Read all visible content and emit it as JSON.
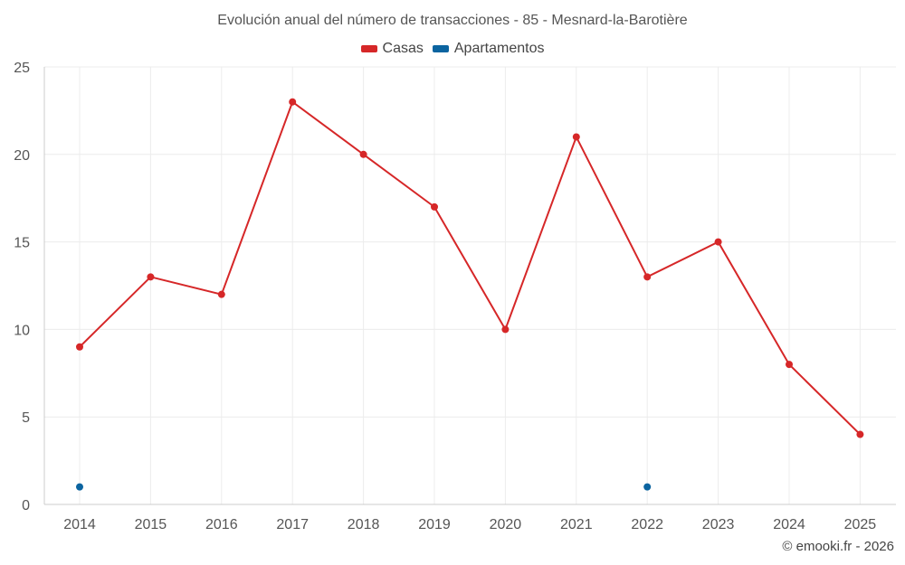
{
  "chart_data": {
    "type": "line",
    "title": "Evolución anual del número de transacciones - 85 - Mesnard-la-Barotière",
    "xlabel": "",
    "ylabel": "",
    "x": [
      "2014",
      "2015",
      "2016",
      "2017",
      "2018",
      "2019",
      "2020",
      "2021",
      "2022",
      "2023",
      "2024",
      "2025"
    ],
    "ylim": [
      0,
      25
    ],
    "yticks": [
      0,
      5,
      10,
      15,
      20,
      25
    ],
    "grid": true,
    "legend_position": "top-center",
    "series": [
      {
        "name": "Casas",
        "color": "#d62728",
        "values": [
          9,
          13,
          12,
          23,
          20,
          17,
          10,
          21,
          13,
          15,
          8,
          4
        ]
      },
      {
        "name": "Apartamentos",
        "color": "#0b64a0",
        "values": [
          1,
          null,
          null,
          null,
          null,
          null,
          null,
          null,
          1,
          null,
          null,
          null
        ]
      }
    ]
  },
  "credit": "© emooki.fr - 2026"
}
